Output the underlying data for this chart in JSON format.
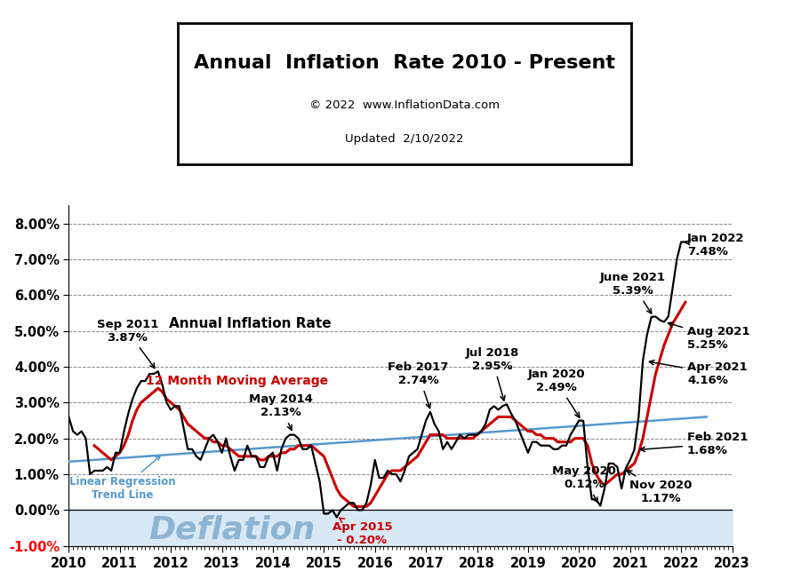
{
  "title_line1": "Annual  Inflation  Rate 2010 - Present",
  "title_line2": "© 2022  www.InflationData.com",
  "title_line3": "Updated  2/10/2022",
  "xlim": [
    2010.0,
    2023.0
  ],
  "ylim": [
    -0.01,
    0.085
  ],
  "yticks": [
    -0.01,
    0.0,
    0.01,
    0.02,
    0.03,
    0.04,
    0.05,
    0.06,
    0.07,
    0.08
  ],
  "ytick_labels": [
    "-1.00%",
    "0.00%",
    "1.00%",
    "2.00%",
    "3.00%",
    "4.00%",
    "5.00%",
    "6.00%",
    "7.00%",
    "8.00%"
  ],
  "xticks": [
    2010,
    2011,
    2012,
    2013,
    2014,
    2015,
    2016,
    2017,
    2018,
    2019,
    2020,
    2021,
    2022,
    2023
  ],
  "deflation_label": "Deflation",
  "line_color_main": "#000000",
  "line_color_ma": "#cc0000",
  "line_color_trend": "#5599cc",
  "background_color": "#ffffff",
  "deflation_fill_color": "#d8e8f4",
  "inflation_dates": [
    2010.0,
    2010.083,
    2010.167,
    2010.25,
    2010.333,
    2010.417,
    2010.5,
    2010.583,
    2010.667,
    2010.75,
    2010.833,
    2010.917,
    2011.0,
    2011.083,
    2011.167,
    2011.25,
    2011.333,
    2011.417,
    2011.5,
    2011.583,
    2011.667,
    2011.75,
    2011.833,
    2011.917,
    2012.0,
    2012.083,
    2012.167,
    2012.25,
    2012.333,
    2012.417,
    2012.5,
    2012.583,
    2012.667,
    2012.75,
    2012.833,
    2012.917,
    2013.0,
    2013.083,
    2013.167,
    2013.25,
    2013.333,
    2013.417,
    2013.5,
    2013.583,
    2013.667,
    2013.75,
    2013.833,
    2013.917,
    2014.0,
    2014.083,
    2014.167,
    2014.25,
    2014.333,
    2014.417,
    2014.5,
    2014.583,
    2014.667,
    2014.75,
    2014.833,
    2014.917,
    2015.0,
    2015.083,
    2015.167,
    2015.25,
    2015.333,
    2015.417,
    2015.5,
    2015.583,
    2015.667,
    2015.75,
    2015.833,
    2015.917,
    2016.0,
    2016.083,
    2016.167,
    2016.25,
    2016.333,
    2016.417,
    2016.5,
    2016.583,
    2016.667,
    2016.75,
    2016.833,
    2016.917,
    2017.0,
    2017.083,
    2017.167,
    2017.25,
    2017.333,
    2017.417,
    2017.5,
    2017.583,
    2017.667,
    2017.75,
    2017.833,
    2017.917,
    2018.0,
    2018.083,
    2018.167,
    2018.25,
    2018.333,
    2018.417,
    2018.5,
    2018.583,
    2018.667,
    2018.75,
    2018.833,
    2018.917,
    2019.0,
    2019.083,
    2019.167,
    2019.25,
    2019.333,
    2019.417,
    2019.5,
    2019.583,
    2019.667,
    2019.75,
    2019.833,
    2019.917,
    2020.0,
    2020.083,
    2020.167,
    2020.25,
    2020.333,
    2020.417,
    2020.5,
    2020.583,
    2020.667,
    2020.75,
    2020.833,
    2020.917,
    2021.0,
    2021.083,
    2021.167,
    2021.25,
    2021.333,
    2021.417,
    2021.5,
    2021.583,
    2021.667,
    2021.75,
    2021.833,
    2021.917,
    2022.0,
    2022.083
  ],
  "inflation_values": [
    0.026,
    0.022,
    0.021,
    0.022,
    0.02,
    0.01,
    0.011,
    0.011,
    0.011,
    0.012,
    0.011,
    0.016,
    0.016,
    0.022,
    0.027,
    0.031,
    0.034,
    0.036,
    0.036,
    0.038,
    0.038,
    0.0387,
    0.035,
    0.03,
    0.028,
    0.029,
    0.029,
    0.023,
    0.017,
    0.017,
    0.015,
    0.014,
    0.017,
    0.02,
    0.021,
    0.019,
    0.016,
    0.02,
    0.015,
    0.011,
    0.014,
    0.014,
    0.018,
    0.015,
    0.015,
    0.012,
    0.012,
    0.015,
    0.016,
    0.011,
    0.017,
    0.02,
    0.021,
    0.021,
    0.02,
    0.017,
    0.017,
    0.018,
    0.013,
    0.008,
    -0.001,
    -0.001,
    0.0,
    -0.002,
    0.0,
    0.001,
    0.002,
    0.002,
    0.0,
    0.0,
    0.002,
    0.007,
    0.014,
    0.009,
    0.009,
    0.011,
    0.01,
    0.01,
    0.008,
    0.011,
    0.015,
    0.016,
    0.017,
    0.021,
    0.025,
    0.0274,
    0.024,
    0.022,
    0.017,
    0.019,
    0.017,
    0.019,
    0.021,
    0.02,
    0.021,
    0.021,
    0.021,
    0.022,
    0.024,
    0.028,
    0.029,
    0.028,
    0.029,
    0.0295,
    0.027,
    0.025,
    0.022,
    0.019,
    0.016,
    0.019,
    0.019,
    0.018,
    0.018,
    0.018,
    0.017,
    0.017,
    0.018,
    0.018,
    0.021,
    0.023,
    0.025,
    0.0249,
    0.012,
    0.003,
    0.003,
    0.0012,
    0.006,
    0.013,
    0.013,
    0.012,
    0.006,
    0.0117,
    0.014,
    0.0168,
    0.026,
    0.0416,
    0.049,
    0.0539,
    0.054,
    0.053,
    0.0525,
    0.054,
    0.062,
    0.07,
    0.0748,
    0.0748
  ],
  "ma_dates": [
    2010.5,
    2010.583,
    2010.667,
    2010.75,
    2010.833,
    2010.917,
    2011.0,
    2011.083,
    2011.167,
    2011.25,
    2011.333,
    2011.417,
    2011.5,
    2011.583,
    2011.667,
    2011.75,
    2011.833,
    2011.917,
    2012.0,
    2012.083,
    2012.167,
    2012.25,
    2012.333,
    2012.417,
    2012.5,
    2012.583,
    2012.667,
    2012.75,
    2012.833,
    2012.917,
    2013.0,
    2013.083,
    2013.167,
    2013.25,
    2013.333,
    2013.417,
    2013.5,
    2013.583,
    2013.667,
    2013.75,
    2013.833,
    2013.917,
    2014.0,
    2014.083,
    2014.167,
    2014.25,
    2014.333,
    2014.417,
    2014.5,
    2014.583,
    2014.667,
    2014.75,
    2014.833,
    2014.917,
    2015.0,
    2015.083,
    2015.167,
    2015.25,
    2015.333,
    2015.417,
    2015.5,
    2015.583,
    2015.667,
    2015.75,
    2015.833,
    2015.917,
    2016.0,
    2016.083,
    2016.167,
    2016.25,
    2016.333,
    2016.417,
    2016.5,
    2016.583,
    2016.667,
    2016.75,
    2016.833,
    2016.917,
    2017.0,
    2017.083,
    2017.167,
    2017.25,
    2017.333,
    2017.417,
    2017.5,
    2017.583,
    2017.667,
    2017.75,
    2017.833,
    2017.917,
    2018.0,
    2018.083,
    2018.167,
    2018.25,
    2018.333,
    2018.417,
    2018.5,
    2018.583,
    2018.667,
    2018.75,
    2018.833,
    2018.917,
    2019.0,
    2019.083,
    2019.167,
    2019.25,
    2019.333,
    2019.417,
    2019.5,
    2019.583,
    2019.667,
    2019.75,
    2019.833,
    2019.917,
    2020.0,
    2020.083,
    2020.167,
    2020.25,
    2020.333,
    2020.417,
    2020.5,
    2020.583,
    2020.667,
    2020.75,
    2020.833,
    2020.917,
    2021.0,
    2021.083,
    2021.167,
    2021.25,
    2021.333,
    2021.417,
    2021.5,
    2021.583,
    2021.667,
    2021.75,
    2021.833,
    2021.917,
    2022.0,
    2022.083
  ],
  "ma_values": [
    0.018,
    0.017,
    0.016,
    0.015,
    0.014,
    0.015,
    0.016,
    0.018,
    0.021,
    0.025,
    0.028,
    0.03,
    0.031,
    0.032,
    0.033,
    0.034,
    0.033,
    0.031,
    0.03,
    0.029,
    0.028,
    0.026,
    0.024,
    0.023,
    0.022,
    0.021,
    0.02,
    0.02,
    0.019,
    0.019,
    0.018,
    0.018,
    0.017,
    0.016,
    0.015,
    0.015,
    0.015,
    0.015,
    0.015,
    0.014,
    0.014,
    0.015,
    0.015,
    0.015,
    0.016,
    0.016,
    0.017,
    0.017,
    0.018,
    0.018,
    0.018,
    0.018,
    0.017,
    0.016,
    0.015,
    0.012,
    0.009,
    0.006,
    0.004,
    0.003,
    0.002,
    0.001,
    0.001,
    0.001,
    0.001,
    0.002,
    0.004,
    0.006,
    0.008,
    0.01,
    0.011,
    0.011,
    0.011,
    0.012,
    0.013,
    0.014,
    0.015,
    0.017,
    0.019,
    0.021,
    0.021,
    0.021,
    0.021,
    0.02,
    0.02,
    0.02,
    0.02,
    0.02,
    0.02,
    0.02,
    0.021,
    0.022,
    0.023,
    0.024,
    0.025,
    0.026,
    0.026,
    0.026,
    0.026,
    0.025,
    0.024,
    0.023,
    0.022,
    0.022,
    0.021,
    0.021,
    0.02,
    0.02,
    0.02,
    0.019,
    0.019,
    0.019,
    0.019,
    0.02,
    0.02,
    0.02,
    0.018,
    0.013,
    0.01,
    0.008,
    0.007,
    0.008,
    0.009,
    0.01,
    0.01,
    0.011,
    0.012,
    0.013,
    0.016,
    0.02,
    0.026,
    0.032,
    0.038,
    0.042,
    0.046,
    0.049,
    0.052,
    0.054,
    0.056,
    0.058
  ],
  "trend_x": [
    2010.0,
    2022.5
  ],
  "trend_y": [
    0.0135,
    0.026
  ]
}
